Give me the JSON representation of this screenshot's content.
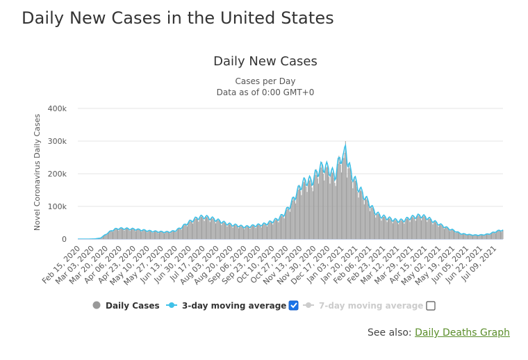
{
  "page": {
    "title": "Daily New Cases in the United States",
    "see_also_label": "See also:",
    "see_also_link": "Daily Deaths Graph"
  },
  "chart_data": {
    "type": "bar",
    "title": "Daily New Cases",
    "subtitle_lines": [
      "Cases per Day",
      "Data as of 0:00 GMT+0"
    ],
    "ylabel": "Novel Coronavirus Daily Cases",
    "xlabel": "",
    "ylim": [
      0,
      400000
    ],
    "yticks": [
      {
        "value": 0,
        "label": "0"
      },
      {
        "value": 100000,
        "label": "100k"
      },
      {
        "value": 200000,
        "label": "200k"
      },
      {
        "value": 300000,
        "label": "300k"
      },
      {
        "value": 400000,
        "label": "400k"
      }
    ],
    "x_tick_labels": [
      "Feb 15, 2020",
      "Mar 03, 2020",
      "Mar 20, 2020",
      "Apr 06, 2020",
      "Apr 23, 2020",
      "May 10, 2020",
      "May 27, 2020",
      "Jun 13, 2020",
      "Jun 30, 2020",
      "Jul 17, 2020",
      "Aug 03, 2020",
      "Aug 20, 2020",
      "Sep 06, 2020",
      "Sep 23, 2020",
      "Oct 10, 2020",
      "Oct 27, 2020",
      "Nov 13, 2020",
      "Nov 30, 2020",
      "Dec 17, 2020",
      "Jan 03, 2021",
      "Jan 20, 2021",
      "Feb 06, 2021",
      "Feb 23, 2021",
      "Mar 12, 2021",
      "Mar 29, 2021",
      "Apr 15, 2021",
      "May 02, 2021",
      "May 19, 2021",
      "Jun 05, 2021",
      "Jun 22, 2021",
      "Jul 09, 2021"
    ],
    "x_start": "2020-02-15",
    "x_end": "2021-07-20",
    "weekly_cases": [
      {
        "week_of": "2020-02-15",
        "value": 0
      },
      {
        "week_of": "2020-02-22",
        "value": 0
      },
      {
        "week_of": "2020-02-29",
        "value": 50
      },
      {
        "week_of": "2020-03-07",
        "value": 500
      },
      {
        "week_of": "2020-03-14",
        "value": 3000
      },
      {
        "week_of": "2020-03-21",
        "value": 15000
      },
      {
        "week_of": "2020-03-28",
        "value": 26000
      },
      {
        "week_of": "2020-04-04",
        "value": 31000
      },
      {
        "week_of": "2020-04-11",
        "value": 31000
      },
      {
        "week_of": "2020-04-18",
        "value": 30000
      },
      {
        "week_of": "2020-04-25",
        "value": 29000
      },
      {
        "week_of": "2020-05-02",
        "value": 27000
      },
      {
        "week_of": "2020-05-09",
        "value": 25000
      },
      {
        "week_of": "2020-05-16",
        "value": 23000
      },
      {
        "week_of": "2020-05-23",
        "value": 22000
      },
      {
        "week_of": "2020-05-30",
        "value": 21000
      },
      {
        "week_of": "2020-06-06",
        "value": 21000
      },
      {
        "week_of": "2020-06-13",
        "value": 24000
      },
      {
        "week_of": "2020-06-20",
        "value": 33000
      },
      {
        "week_of": "2020-06-27",
        "value": 45000
      },
      {
        "week_of": "2020-07-04",
        "value": 55000
      },
      {
        "week_of": "2020-07-11",
        "value": 63000
      },
      {
        "week_of": "2020-07-18",
        "value": 66000
      },
      {
        "week_of": "2020-07-25",
        "value": 63000
      },
      {
        "week_of": "2020-08-01",
        "value": 58000
      },
      {
        "week_of": "2020-08-08",
        "value": 52000
      },
      {
        "week_of": "2020-08-15",
        "value": 46000
      },
      {
        "week_of": "2020-08-22",
        "value": 42000
      },
      {
        "week_of": "2020-08-29",
        "value": 40000
      },
      {
        "week_of": "2020-09-05",
        "value": 36000
      },
      {
        "week_of": "2020-09-12",
        "value": 37000
      },
      {
        "week_of": "2020-09-19",
        "value": 40000
      },
      {
        "week_of": "2020-09-26",
        "value": 42000
      },
      {
        "week_of": "2020-10-03",
        "value": 45000
      },
      {
        "week_of": "2020-10-10",
        "value": 52000
      },
      {
        "week_of": "2020-10-17",
        "value": 59000
      },
      {
        "week_of": "2020-10-24",
        "value": 72000
      },
      {
        "week_of": "2020-10-31",
        "value": 95000
      },
      {
        "week_of": "2020-11-07",
        "value": 125000
      },
      {
        "week_of": "2020-11-14",
        "value": 158000
      },
      {
        "week_of": "2020-11-21",
        "value": 172000
      },
      {
        "week_of": "2020-11-28",
        "value": 170000
      },
      {
        "week_of": "2020-12-05",
        "value": 200000
      },
      {
        "week_of": "2020-12-12",
        "value": 215000
      },
      {
        "week_of": "2020-12-19",
        "value": 205000
      },
      {
        "week_of": "2020-12-26",
        "value": 185000
      },
      {
        "week_of": "2021-01-02",
        "value": 245000
      },
      {
        "week_of": "2021-01-09",
        "value": 230000
      },
      {
        "week_of": "2021-01-16",
        "value": 190000
      },
      {
        "week_of": "2021-01-23",
        "value": 155000
      },
      {
        "week_of": "2021-01-30",
        "value": 130000
      },
      {
        "week_of": "2021-02-06",
        "value": 105000
      },
      {
        "week_of": "2021-02-13",
        "value": 80000
      },
      {
        "week_of": "2021-02-20",
        "value": 68000
      },
      {
        "week_of": "2021-02-27",
        "value": 63000
      },
      {
        "week_of": "2021-03-06",
        "value": 58000
      },
      {
        "week_of": "2021-03-13",
        "value": 54000
      },
      {
        "week_of": "2021-03-20",
        "value": 55000
      },
      {
        "week_of": "2021-03-27",
        "value": 62000
      },
      {
        "week_of": "2021-04-03",
        "value": 66000
      },
      {
        "week_of": "2021-04-10",
        "value": 69000
      },
      {
        "week_of": "2021-04-17",
        "value": 64000
      },
      {
        "week_of": "2021-04-24",
        "value": 55000
      },
      {
        "week_of": "2021-05-01",
        "value": 46000
      },
      {
        "week_of": "2021-05-08",
        "value": 38000
      },
      {
        "week_of": "2021-05-15",
        "value": 30000
      },
      {
        "week_of": "2021-05-22",
        "value": 24000
      },
      {
        "week_of": "2021-05-29",
        "value": 16000
      },
      {
        "week_of": "2021-06-05",
        "value": 14000
      },
      {
        "week_of": "2021-06-12",
        "value": 12000
      },
      {
        "week_of": "2021-06-19",
        "value": 11500
      },
      {
        "week_of": "2021-06-26",
        "value": 12500
      },
      {
        "week_of": "2021-07-03",
        "value": 15000
      },
      {
        "week_of": "2021-07-10",
        "value": 21000
      },
      {
        "week_of": "2021-07-17",
        "value": 26000
      }
    ],
    "peak": {
      "date": "2021-01-08",
      "value": 300000
    },
    "series": [
      {
        "name": "Daily Cases",
        "color": "#999999",
        "visible": true,
        "marker": "circle",
        "checkbox": false
      },
      {
        "name": "3-day moving average",
        "color": "#3fc1e8",
        "visible": true,
        "marker": "circle-line",
        "checkbox": true,
        "checked": true
      },
      {
        "name": "7-day moving average",
        "color": "#cccccc",
        "visible": false,
        "marker": "circle-line",
        "checkbox": true,
        "checked": false
      }
    ],
    "grid": true,
    "legend_position": "bottom"
  }
}
